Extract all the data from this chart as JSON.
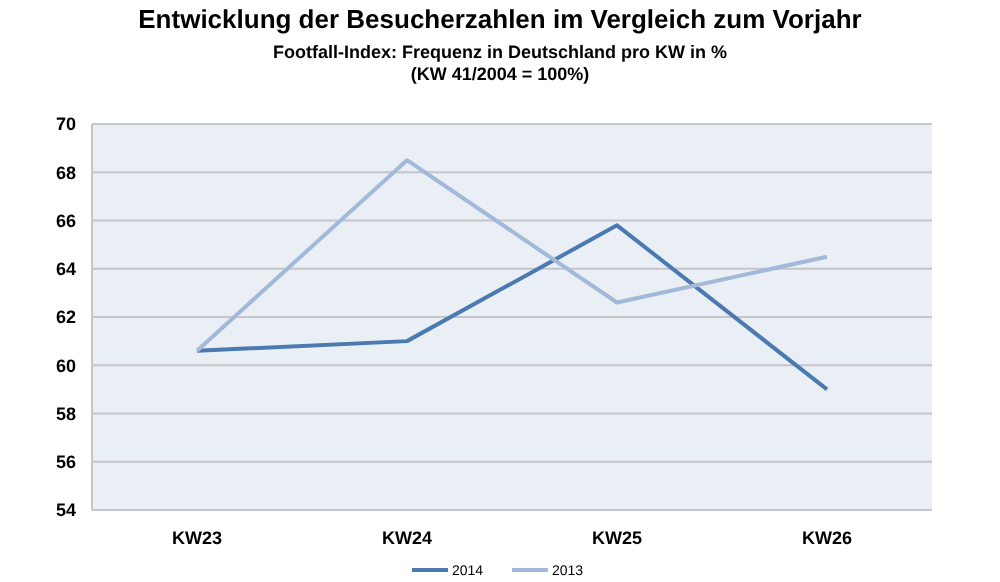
{
  "chart_data": {
    "type": "line",
    "title": "Entwicklung der Besucherzahlen im Vergleich zum Vorjahr",
    "subtitle": "Footfall-Index: Frequenz in Deutschland pro KW in %\n(KW 41/2004 = 100%)",
    "categories": [
      "KW23",
      "KW24",
      "KW25",
      "KW26"
    ],
    "series": [
      {
        "name": "2014",
        "color": "#4a7ab0",
        "values": [
          60.6,
          61.0,
          65.8,
          59.0
        ]
      },
      {
        "name": "2013",
        "color": "#a3b9d9",
        "values": [
          60.6,
          68.5,
          62.6,
          64.5
        ]
      }
    ],
    "ylim": [
      54,
      70
    ],
    "yticks": [
      54,
      56,
      58,
      60,
      62,
      64,
      66,
      68,
      70
    ],
    "grid": "y",
    "legend": "bottom",
    "marker": "none",
    "line_style": "solid"
  }
}
